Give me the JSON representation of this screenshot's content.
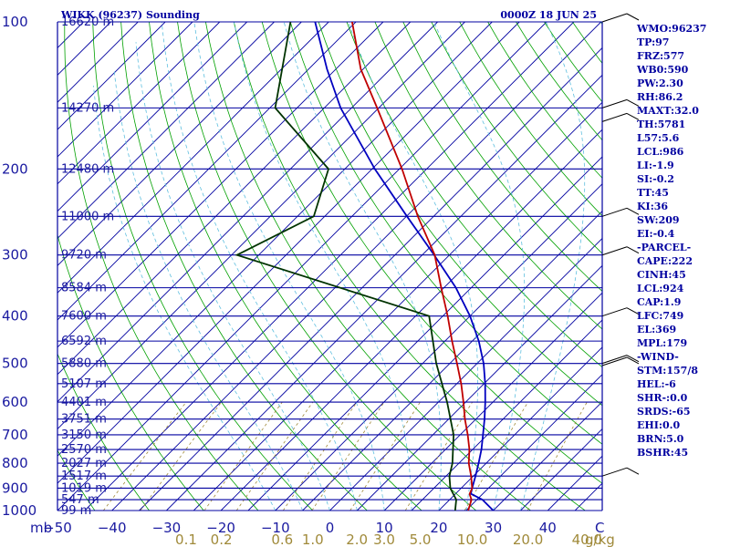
{
  "header": {
    "station": "WIKK (96237) Sounding",
    "time": "0000Z 18 JUN 25"
  },
  "colors": {
    "isobar": "#0000a0",
    "isotherm": "#0000a0",
    "dry_adiabat": "#00a000",
    "moist_adiabat": "#5fbfdf",
    "mixing_ratio": "#a08a3a",
    "temperature": "#c00000",
    "dewpoint": "#003300",
    "parcel": "#0000c0",
    "text": "#0000a0"
  },
  "chart_data": {
    "type": "skew-t",
    "title": "WIKK (96237) Sounding",
    "time": "0000Z 18 JUN 25",
    "xlabel": "C",
    "pressure_unit": "mb",
    "mixing_ratio_unit": "g/kg",
    "pressure_range": [
      1000,
      100
    ],
    "temperature_range": [
      -50,
      50
    ],
    "log_pressure": true,
    "skewed_isotherms": true,
    "pressure_levels": [
      {
        "p": 100,
        "label": "100",
        "height": "16620 m"
      },
      {
        "p": 150,
        "label": "",
        "height": "14270 m"
      },
      {
        "p": 200,
        "label": "200",
        "height": "12480 m"
      },
      {
        "p": 250,
        "label": "",
        "height": "11000 m"
      },
      {
        "p": 300,
        "label": "300",
        "height": "9720 m"
      },
      {
        "p": 350,
        "label": "",
        "height": "8584 m"
      },
      {
        "p": 400,
        "label": "400",
        "height": "7600 m"
      },
      {
        "p": 450,
        "label": "",
        "height": "6592 m"
      },
      {
        "p": 500,
        "label": "500",
        "height": "5880 m"
      },
      {
        "p": 550,
        "label": "",
        "height": "5107 m"
      },
      {
        "p": 600,
        "label": "600",
        "height": "4401 m"
      },
      {
        "p": 650,
        "label": "",
        "height": "3751 m"
      },
      {
        "p": 700,
        "label": "700",
        "height": "3150 m"
      },
      {
        "p": 750,
        "label": "",
        "height": "2570 m"
      },
      {
        "p": 800,
        "label": "800",
        "height": "2027 m"
      },
      {
        "p": 850,
        "label": "",
        "height": "1517 m"
      },
      {
        "p": 900,
        "label": "900",
        "height": "1019 m"
      },
      {
        "p": 950,
        "label": "",
        "height": "547 m"
      },
      {
        "p": 1000,
        "label": "1000",
        "height": "99 m"
      }
    ],
    "temperature_ticks": [
      -50,
      -40,
      -30,
      -20,
      -10,
      0,
      10,
      20,
      30,
      40
    ],
    "temperature_tick_labels": [
      "−50",
      "−40",
      "−30",
      "−20",
      "−10",
      "0",
      "10",
      "20",
      "30",
      "40"
    ],
    "mixing_ratio_ticks": [
      0.1,
      0.2,
      0.6,
      1.0,
      2.0,
      3.0,
      5.0,
      10.0,
      20.0,
      40.0
    ],
    "mixing_ratio_labels": [
      "0.1",
      "0.2",
      "0.6",
      "1.0",
      "2.0",
      "3.0",
      "5.0",
      "10.0",
      "20.0",
      "40.0"
    ],
    "series": [
      {
        "key": "temperature",
        "points": [
          {
            "p": 1000,
            "t": 25.4
          },
          {
            "p": 950,
            "t": 24.0
          },
          {
            "p": 925,
            "t": 22.6
          },
          {
            "p": 900,
            "t": 22.0
          },
          {
            "p": 850,
            "t": 19.6
          },
          {
            "p": 800,
            "t": 16.8
          },
          {
            "p": 750,
            "t": 14.4
          },
          {
            "p": 700,
            "t": 11.4
          },
          {
            "p": 650,
            "t": 8.0
          },
          {
            "p": 600,
            "t": 4.6
          },
          {
            "p": 550,
            "t": 0.8
          },
          {
            "p": 500,
            "t": -3.7
          },
          {
            "p": 450,
            "t": -8.7
          },
          {
            "p": 400,
            "t": -14.1
          },
          {
            "p": 350,
            "t": -20.5
          },
          {
            "p": 300,
            "t": -27.7
          },
          {
            "p": 250,
            "t": -37.9
          },
          {
            "p": 200,
            "t": -49.5
          },
          {
            "p": 150,
            "t": -65.3
          },
          {
            "p": 125,
            "t": -75.4
          },
          {
            "p": 100,
            "t": -85.7
          }
        ]
      },
      {
        "key": "dewpoint",
        "points": [
          {
            "p": 1000,
            "t": 23.0
          },
          {
            "p": 950,
            "t": 21.2
          },
          {
            "p": 900,
            "t": 18.0
          },
          {
            "p": 850,
            "t": 15.6
          },
          {
            "p": 800,
            "t": 13.8
          },
          {
            "p": 700,
            "t": 8.8
          },
          {
            "p": 600,
            "t": 1.6
          },
          {
            "p": 500,
            "t": -7.5
          },
          {
            "p": 400,
            "t": -17.5
          },
          {
            "p": 300,
            "t": -64.0
          },
          {
            "p": 250,
            "t": -57.0
          },
          {
            "p": 200,
            "t": -63.0
          },
          {
            "p": 150,
            "t": -84.0
          },
          {
            "p": 100,
            "t": -97.0
          }
        ]
      },
      {
        "key": "parcel",
        "points": [
          {
            "p": 1000,
            "t": 30.0
          },
          {
            "p": 950,
            "t": 26.0
          },
          {
            "p": 924,
            "t": 22.8
          },
          {
            "p": 900,
            "t": 22.0
          },
          {
            "p": 850,
            "t": 20.4
          },
          {
            "p": 800,
            "t": 18.6
          },
          {
            "p": 750,
            "t": 16.6
          },
          {
            "p": 700,
            "t": 14.2
          },
          {
            "p": 650,
            "t": 11.6
          },
          {
            "p": 600,
            "t": 8.6
          },
          {
            "p": 550,
            "t": 5.2
          },
          {
            "p": 500,
            "t": 1.2
          },
          {
            "p": 450,
            "t": -3.8
          },
          {
            "p": 400,
            "t": -10.0
          },
          {
            "p": 350,
            "t": -17.8
          },
          {
            "p": 300,
            "t": -27.8
          },
          {
            "p": 250,
            "t": -39.9
          },
          {
            "p": 200,
            "t": -54.5
          },
          {
            "p": 150,
            "t": -72.0
          },
          {
            "p": 125,
            "t": -81.6
          },
          {
            "p": 100,
            "t": -92.5
          }
        ]
      }
    ],
    "wind_barbs": [
      {
        "p": 100
      },
      {
        "p": 150
      },
      {
        "p": 160
      },
      {
        "p": 250
      },
      {
        "p": 300
      },
      {
        "p": 400
      },
      {
        "p": 500
      },
      {
        "p": 505
      },
      {
        "p": 850
      }
    ]
  },
  "indices": [
    "WMO:96237",
    "TP:97",
    "FRZ:577",
    "WB0:590",
    "PW:2.30",
    "RH:86.2",
    "MAXT:32.0",
    "TH:5781",
    "L57:5.6",
    "LCL:986",
    "LI:-1.9",
    "SI:-0.2",
    "TT:45",
    "KI:36",
    "SW:209",
    "EI:-0.4",
    "-PARCEL-",
    "CAPE:222",
    "CINH:45",
    "LCL:924",
    "CAP:1.9",
    "LFC:749",
    "EL:369",
    "MPL:179",
    "-WIND-",
    "STM:157/8",
    "HEL:-6",
    "SHR-:0.0",
    "SRDS:-65",
    "EHI:0.0",
    "BRN:5.0",
    "BSHR:45"
  ]
}
